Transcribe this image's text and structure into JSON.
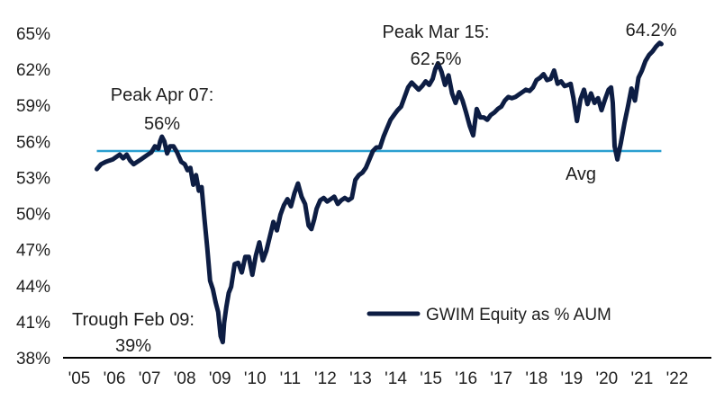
{
  "chart_data": {
    "type": "line",
    "title": "",
    "xlabel": "",
    "ylabel": "",
    "x_ticks": [
      "'05",
      "'06",
      "'07",
      "'08",
      "'09",
      "'10",
      "'11",
      "'12",
      "'13",
      "'14",
      "'15",
      "'16",
      "'17",
      "'18",
      "'19",
      "'20",
      "'21",
      "'22"
    ],
    "y_ticks": [
      "38%",
      "41%",
      "44%",
      "47%",
      "50%",
      "53%",
      "56%",
      "59%",
      "62%",
      "65%"
    ],
    "xlim": [
      2005,
      2022
    ],
    "ylim": [
      38,
      65
    ],
    "grid": false,
    "legend_position": "bottom-right",
    "colors": {
      "series": "#0d1d43",
      "average": "#2a9fd0",
      "baseline": "#000000"
    },
    "series": [
      {
        "name": "GWIM Equity as % AUM",
        "x": [
          2005.5,
          2005.62,
          2005.75,
          2005.85,
          2005.95,
          2006.05,
          2006.15,
          2006.25,
          2006.35,
          2006.45,
          2006.55,
          2006.65,
          2006.75,
          2006.85,
          2006.95,
          2007.05,
          2007.15,
          2007.25,
          2007.3,
          2007.35,
          2007.42,
          2007.5,
          2007.58,
          2007.68,
          2007.78,
          2007.9,
          2008.0,
          2008.08,
          2008.16,
          2008.24,
          2008.32,
          2008.4,
          2008.48,
          2008.56,
          2008.64,
          2008.72,
          2008.8,
          2008.88,
          2008.95,
          2009.02,
          2009.08,
          2009.12,
          2009.18,
          2009.25,
          2009.32,
          2009.42,
          2009.52,
          2009.62,
          2009.72,
          2009.82,
          2009.92,
          2010.02,
          2010.12,
          2010.22,
          2010.32,
          2010.42,
          2010.52,
          2010.62,
          2010.72,
          2010.82,
          2010.92,
          2011.02,
          2011.12,
          2011.22,
          2011.32,
          2011.42,
          2011.52,
          2011.6,
          2011.68,
          2011.75,
          2011.85,
          2011.95,
          2012.05,
          2012.15,
          2012.25,
          2012.35,
          2012.45,
          2012.55,
          2012.65,
          2012.75,
          2012.85,
          2012.95,
          2013.05,
          2013.15,
          2013.25,
          2013.35,
          2013.45,
          2013.55,
          2013.65,
          2013.75,
          2013.85,
          2013.95,
          2014.05,
          2014.15,
          2014.25,
          2014.35,
          2014.45,
          2014.55,
          2014.65,
          2014.75,
          2014.85,
          2014.95,
          2015.05,
          2015.12,
          2015.2,
          2015.3,
          2015.4,
          2015.5,
          2015.6,
          2015.7,
          2015.8,
          2015.9,
          2016.0,
          2016.1,
          2016.2,
          2016.3,
          2016.4,
          2016.5,
          2016.6,
          2016.7,
          2016.8,
          2016.9,
          2017.0,
          2017.1,
          2017.2,
          2017.3,
          2017.4,
          2017.5,
          2017.6,
          2017.7,
          2017.8,
          2017.9,
          2018.0,
          2018.1,
          2018.2,
          2018.3,
          2018.4,
          2018.5,
          2018.6,
          2018.7,
          2018.8,
          2018.9,
          2018.97,
          2019.05,
          2019.15,
          2019.25,
          2019.35,
          2019.45,
          2019.55,
          2019.65,
          2019.75,
          2019.85,
          2019.95,
          2020.05,
          2020.12,
          2020.17,
          2020.22,
          2020.3,
          2020.4,
          2020.5,
          2020.6,
          2020.7,
          2020.8,
          2020.9,
          2021.0,
          2021.1,
          2021.2,
          2021.3,
          2021.4,
          2021.5,
          2021.55
        ],
        "values": [
          53.7,
          54.1,
          54.3,
          54.4,
          54.5,
          54.7,
          54.9,
          54.6,
          54.9,
          54.4,
          54.1,
          54.3,
          54.5,
          54.7,
          54.9,
          55.1,
          55.6,
          55.4,
          56.0,
          56.4,
          56.0,
          55.0,
          55.6,
          55.6,
          55.1,
          54.3,
          54.1,
          53.6,
          53.8,
          52.4,
          53.2,
          51.9,
          52.2,
          49.6,
          47.1,
          44.4,
          43.7,
          42.6,
          41.8,
          39.8,
          39.3,
          40.9,
          42.2,
          43.4,
          43.9,
          45.8,
          45.9,
          45.1,
          46.4,
          46.4,
          44.9,
          46.5,
          47.6,
          46.1,
          46.9,
          48.1,
          49.3,
          48.6,
          49.9,
          50.7,
          51.2,
          50.6,
          51.7,
          52.5,
          51.4,
          50.8,
          49.0,
          48.7,
          49.5,
          50.4,
          51.1,
          51.3,
          51.0,
          51.2,
          51.4,
          50.8,
          51.1,
          51.3,
          51.1,
          51.3,
          52.8,
          53.2,
          53.4,
          53.8,
          54.5,
          55.2,
          55.5,
          55.5,
          56.4,
          57.1,
          57.8,
          58.2,
          58.6,
          58.9,
          59.7,
          60.5,
          60.9,
          60.6,
          60.3,
          60.6,
          61.0,
          60.7,
          61.2,
          62.0,
          62.5,
          61.8,
          60.7,
          61.5,
          60.0,
          59.2,
          60.1,
          59.4,
          58.4,
          57.3,
          56.5,
          58.7,
          58.0,
          58.0,
          57.8,
          58.2,
          58.4,
          58.7,
          58.9,
          59.4,
          59.7,
          59.6,
          59.7,
          59.9,
          60.1,
          60.3,
          60.2,
          60.5,
          61.1,
          61.3,
          61.6,
          61.1,
          61.2,
          61.9,
          60.8,
          61.0,
          60.6,
          60.7,
          60.8,
          59.6,
          57.7,
          59.5,
          60.3,
          59.1,
          60.0,
          59.2,
          59.6,
          58.6,
          59.5,
          60.3,
          60.5,
          59.2,
          55.6,
          54.5,
          55.9,
          57.5,
          58.9,
          60.4,
          59.4,
          61.3,
          61.9,
          62.7,
          63.2,
          63.5,
          63.9,
          64.2,
          64.1
        ]
      }
    ],
    "average": {
      "label": "Avg",
      "value": 55.2
    },
    "annotations": [
      {
        "line1": "Peak Apr 07:",
        "line2": "56%"
      },
      {
        "line1": "Peak Mar 15:",
        "line2": "62.5%"
      },
      {
        "line1": "64.2%"
      },
      {
        "line1": "Trough Feb 09:",
        "line2": "39%"
      }
    ]
  }
}
